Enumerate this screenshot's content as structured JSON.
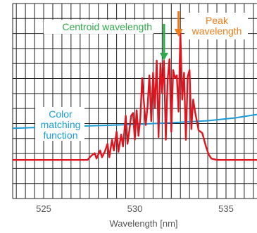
{
  "chart_data": {
    "type": "line",
    "title": "",
    "xlabel": "Wavelength [nm]",
    "ylabel": "",
    "xlim": [
      523.3,
      536.7
    ],
    "ylim": [
      0,
      1
    ],
    "grid": true,
    "x_ticks": [
      525,
      530,
      535
    ],
    "x_tick_labels": [
      "525",
      "530",
      "535"
    ],
    "series": [
      {
        "key": "spectrum",
        "color": "#e0141e",
        "x": [
          523.3,
          527.4,
          527.6,
          527.8,
          527.9,
          528.1,
          528.2,
          528.35,
          528.5,
          528.6,
          528.75,
          528.85,
          529.0,
          529.1,
          529.25,
          529.35,
          529.5,
          529.6,
          529.7,
          529.8,
          529.9,
          530.0,
          530.1,
          530.2,
          530.3,
          530.4,
          530.5,
          530.6,
          530.7,
          530.8,
          530.9,
          531.0,
          531.1,
          531.2,
          531.3,
          531.4,
          531.5,
          531.6,
          531.7,
          531.8,
          531.9,
          532.0,
          532.1,
          532.2,
          532.3,
          532.4,
          532.5,
          532.6,
          532.7,
          532.8,
          532.9,
          533.0,
          533.1,
          533.2,
          533.3,
          533.5,
          533.7,
          533.9,
          534.05,
          534.2,
          534.5,
          536.7
        ],
        "y": [
          0.05,
          0.05,
          0.08,
          0.1,
          0.06,
          0.12,
          0.07,
          0.11,
          0.17,
          0.07,
          0.2,
          0.12,
          0.26,
          0.11,
          0.24,
          0.15,
          0.38,
          0.17,
          0.27,
          0.38,
          0.4,
          0.2,
          0.42,
          0.23,
          0.36,
          0.66,
          0.48,
          0.31,
          0.45,
          0.68,
          0.34,
          0.7,
          0.44,
          0.79,
          0.22,
          0.77,
          0.55,
          0.79,
          0.2,
          0.65,
          0.8,
          0.26,
          0.72,
          0.66,
          0.68,
          0.41,
          1.0,
          0.5,
          0.7,
          0.2,
          0.67,
          0.72,
          0.28,
          0.5,
          0.41,
          0.27,
          0.25,
          0.15,
          0.09,
          0.06,
          0.05,
          0.05
        ]
      },
      {
        "key": "cmf",
        "name": "Color matching function",
        "color": "#1a9bd7",
        "x": [
          523.3,
          526.0,
          528.0,
          530.0,
          532.0,
          534.0,
          535.5,
          536.7
        ],
        "y": [
          0.286,
          0.298,
          0.306,
          0.315,
          0.327,
          0.342,
          0.363,
          0.389
        ]
      }
    ],
    "annotations": [
      {
        "key": "centroid",
        "lines": [
          "Centroid wavelength"
        ],
        "x": 531.6,
        "color": "#2eaa4a"
      },
      {
        "key": "peak",
        "lines": [
          "Peak",
          "wavelength"
        ],
        "x": 532.4,
        "color": "#f07d1a"
      },
      {
        "key": "cmf_label",
        "lines": [
          "Color",
          "matching",
          "function"
        ],
        "color": "#1a9bd7"
      }
    ]
  }
}
